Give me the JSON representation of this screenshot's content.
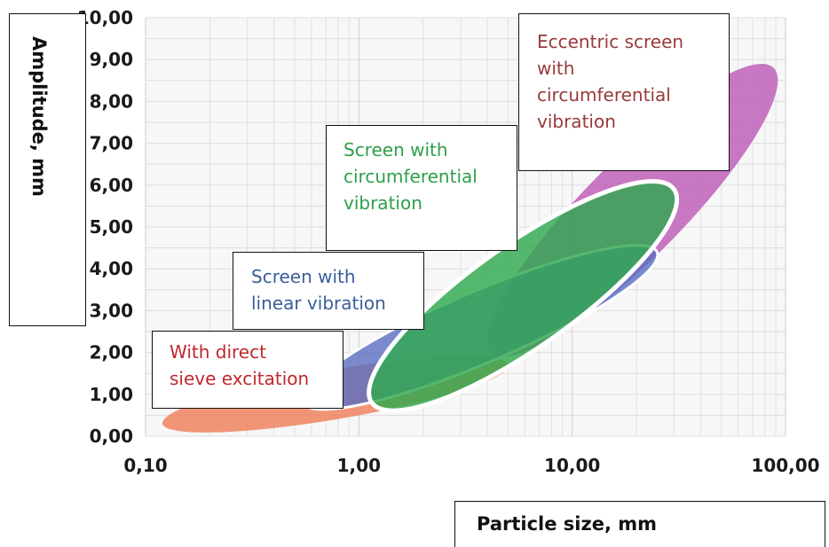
{
  "chart_data": {
    "type": "area",
    "xlabel": "Particle size, mm",
    "ylabel": "Amplitude, mm",
    "x_scale": "log",
    "xlim": [
      0.1,
      100
    ],
    "ylim": [
      0,
      10
    ],
    "x_ticks": [
      "0,10",
      "1,00",
      "10,00",
      "100,00"
    ],
    "y_ticks": [
      "0,00",
      "1,00",
      "2,00",
      "3,00",
      "4,00",
      "5,00",
      "6,00",
      "7,00",
      "8,00",
      "9,00",
      "10,00"
    ],
    "grid": true,
    "series": [
      {
        "name": "With direct sieve excitation",
        "color": "#f08a68",
        "particle_size_range_mm": [
          0.12,
          5
        ],
        "amplitude_range_mm": [
          0,
          2.7
        ]
      },
      {
        "name": "Screen with linear vibration",
        "color": "#5a6ec0",
        "particle_size_range_mm": [
          0.5,
          25
        ],
        "amplitude_range_mm": [
          0.6,
          4.6
        ]
      },
      {
        "name": "Screen with circumferential vibration",
        "color": "#2fa84f",
        "particle_size_range_mm": [
          1.1,
          30
        ],
        "amplitude_range_mm": [
          0.6,
          6.0
        ]
      },
      {
        "name": "Eccentric screen with circumferential vibration",
        "color": "#c060b8",
        "particle_size_range_mm": [
          4,
          90
        ],
        "amplitude_range_mm": [
          1.8,
          8.8
        ]
      }
    ],
    "labels": {
      "direct": [
        "With direct",
        "sieve excitation"
      ],
      "linear": [
        "Screen with",
        "linear vibration"
      ],
      "circ": [
        "Screen with",
        "circumferential",
        "vibration"
      ],
      "ecc": [
        "Eccentric screen",
        "with",
        "circumferential",
        "vibration"
      ]
    }
  },
  "colors": {
    "direct_text": "#c0282d",
    "linear_text": "#3a5e9a",
    "circ_text": "#2e9e4a",
    "ecc_text": "#9a3a3a"
  }
}
